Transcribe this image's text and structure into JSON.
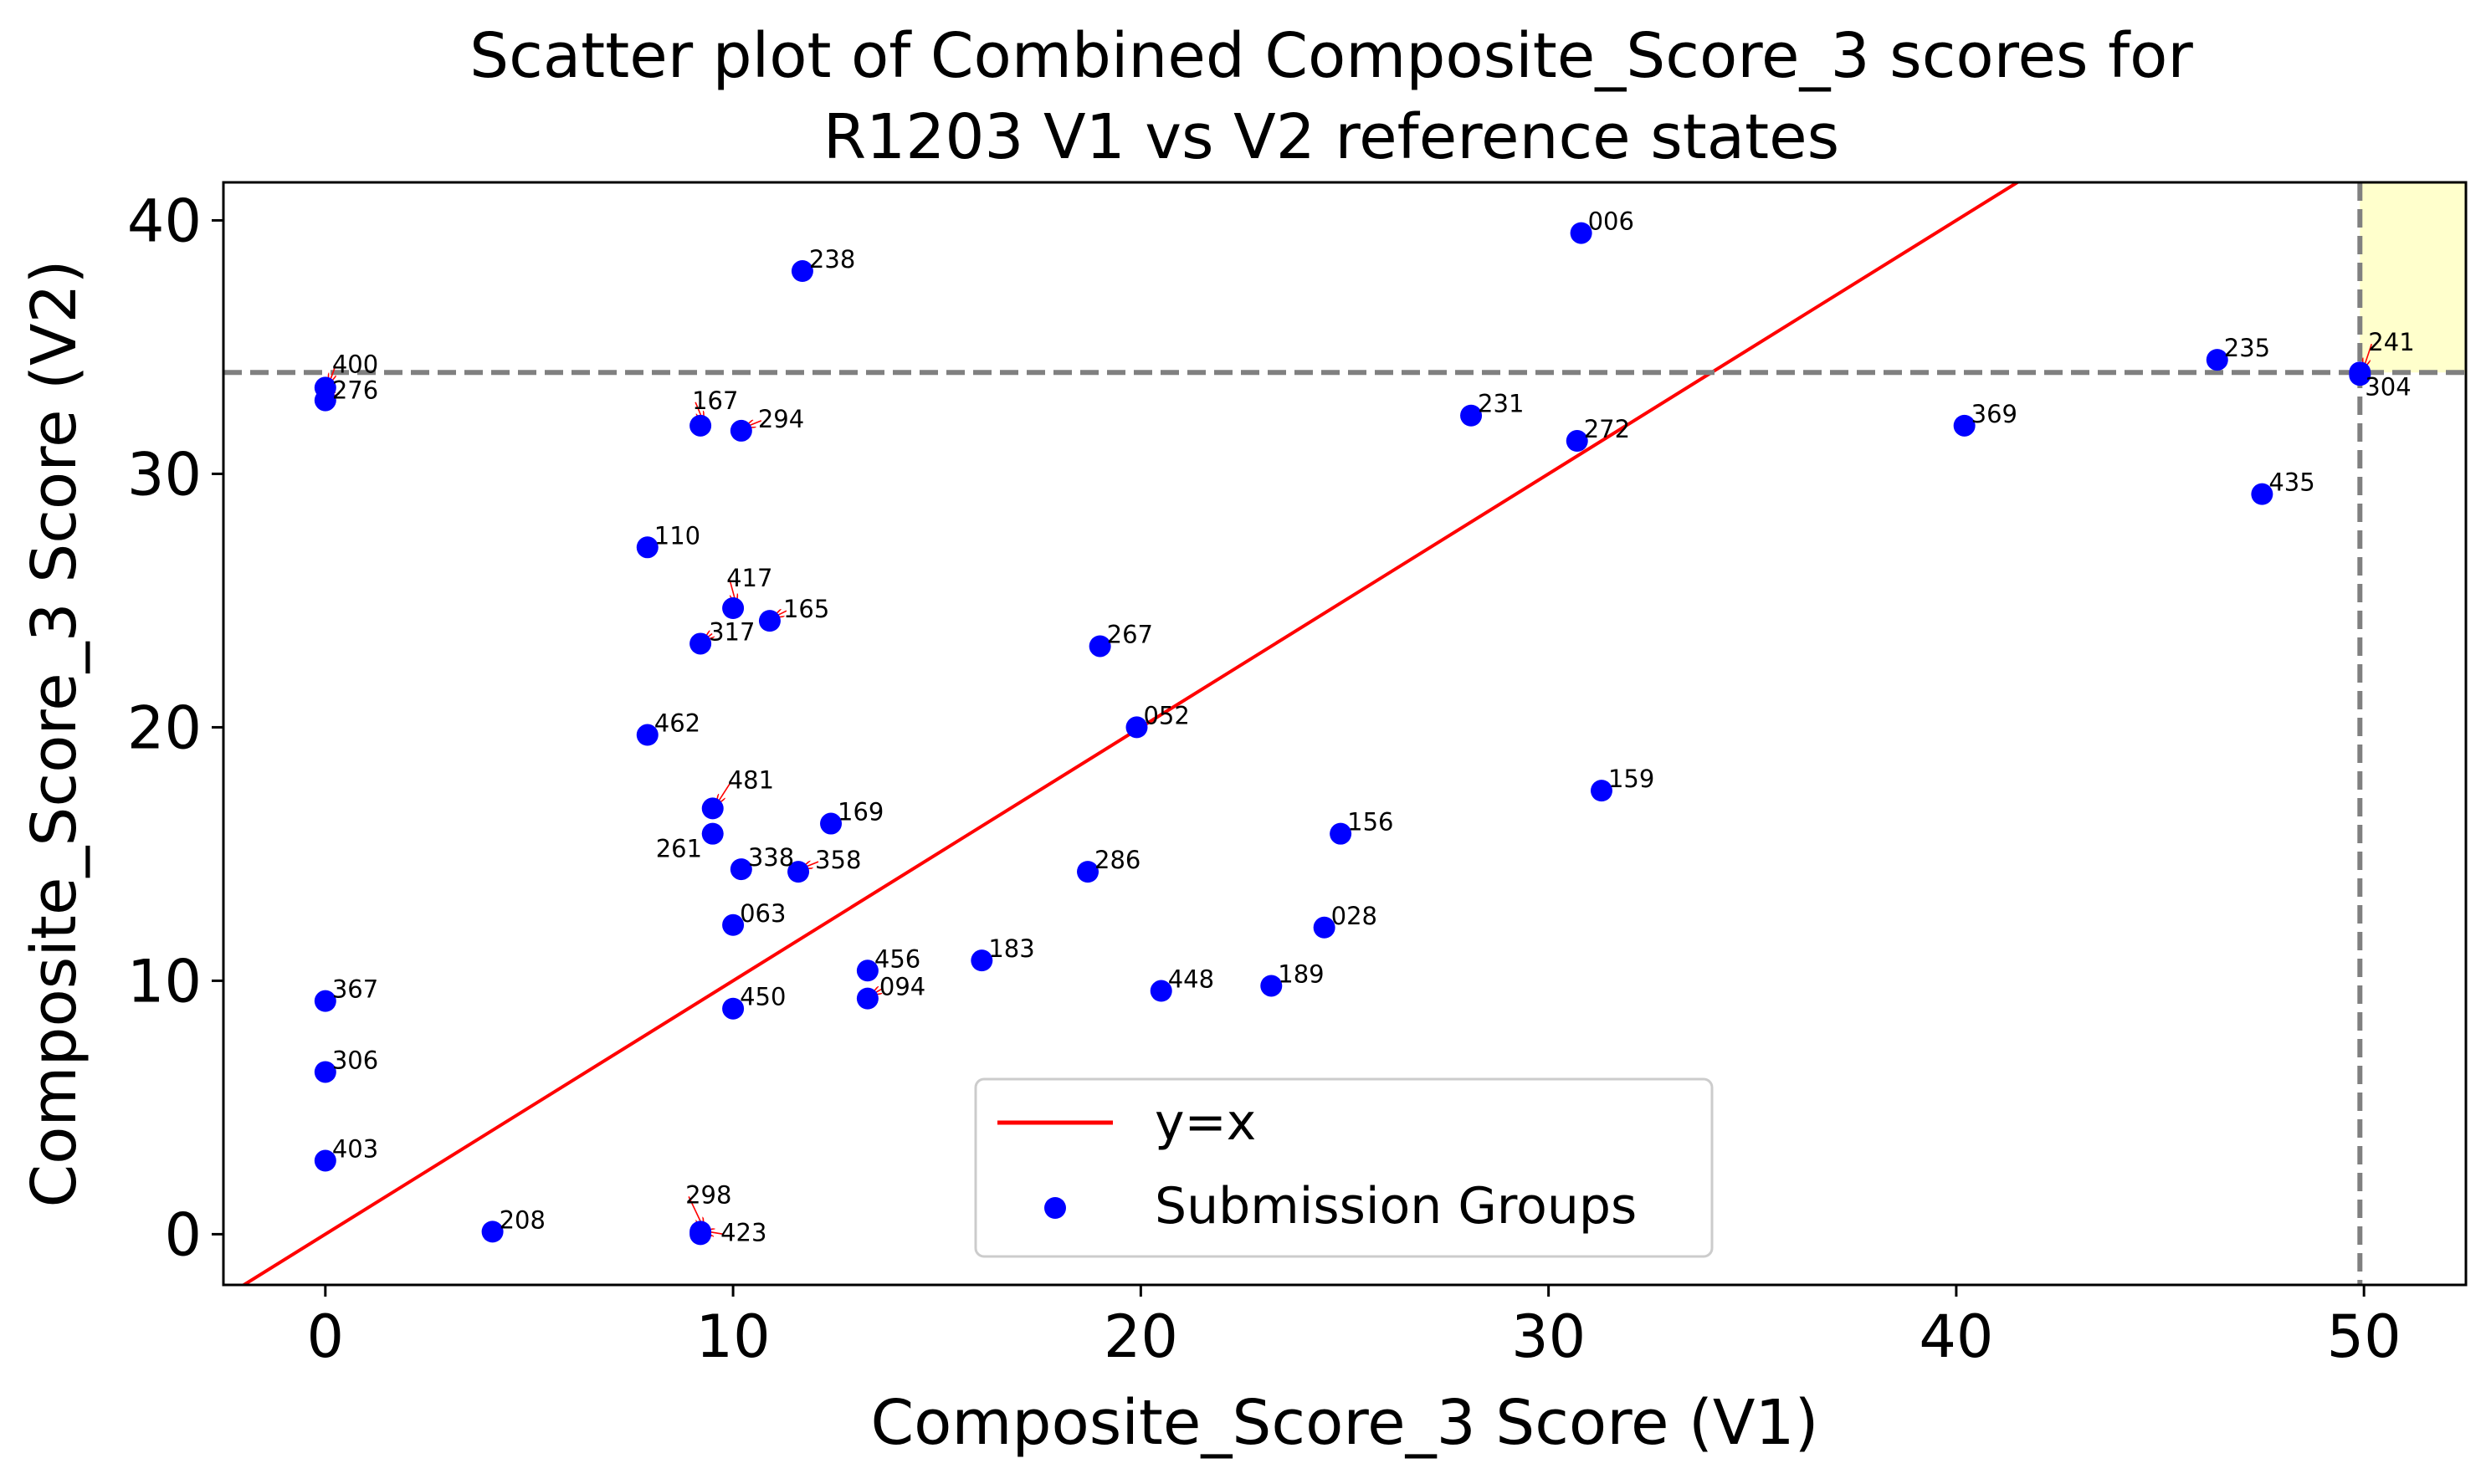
{
  "chart_data": {
    "type": "scatter",
    "title_lines": [
      "Scatter plot of Combined Composite_Score_3 scores for",
      "R1203 V1 vs V2 reference states"
    ],
    "xlabel": "Composite_Score_3 Score (V1)",
    "ylabel": "Composite_Score_3 Score (V2)",
    "xlim": [
      -2.5,
      52.5
    ],
    "ylim": [
      -2,
      41.5
    ],
    "xticks": [
      0,
      10,
      20,
      30,
      40,
      50
    ],
    "yticks": [
      0,
      10,
      20,
      30,
      40
    ],
    "threshold_x": 49.9,
    "threshold_y": 34.0,
    "highlight_color": "#ffffcc",
    "threshold_color": "#808080",
    "diagonal_color": "#ff0000",
    "point_color": "#0000ff",
    "arrow_color": "#ff0000",
    "legend": {
      "position": "lower center",
      "entries": [
        {
          "label": "y=x",
          "marker": "line"
        },
        {
          "label": "Submission Groups",
          "marker": "dot"
        }
      ]
    },
    "points": [
      {
        "label": "006",
        "x": 30.8,
        "y": 39.5
      },
      {
        "label": "238",
        "x": 11.7,
        "y": 38.0
      },
      {
        "label": "400",
        "x": 0.0,
        "y": 33.4
      },
      {
        "label": "276",
        "x": 0.0,
        "y": 32.9
      },
      {
        "label": "167",
        "x": 9.2,
        "y": 31.9
      },
      {
        "label": "294",
        "x": 10.2,
        "y": 31.7
      },
      {
        "label": "231",
        "x": 28.1,
        "y": 32.3
      },
      {
        "label": "272",
        "x": 30.7,
        "y": 31.3
      },
      {
        "label": "235",
        "x": 46.4,
        "y": 34.5
      },
      {
        "label": "241",
        "x": 49.9,
        "y": 34.0
      },
      {
        "label": "304",
        "x": 49.9,
        "y": 33.9
      },
      {
        "label": "369",
        "x": 40.2,
        "y": 31.9
      },
      {
        "label": "435",
        "x": 47.5,
        "y": 29.2
      },
      {
        "label": "110",
        "x": 7.9,
        "y": 27.1
      },
      {
        "label": "417",
        "x": 10.0,
        "y": 24.7
      },
      {
        "label": "165",
        "x": 10.9,
        "y": 24.2
      },
      {
        "label": "317",
        "x": 9.2,
        "y": 23.3
      },
      {
        "label": "267",
        "x": 19.0,
        "y": 23.2
      },
      {
        "label": "462",
        "x": 7.9,
        "y": 19.7
      },
      {
        "label": "052",
        "x": 19.9,
        "y": 20.0
      },
      {
        "label": "159",
        "x": 31.3,
        "y": 17.5
      },
      {
        "label": "481",
        "x": 9.5,
        "y": 16.8
      },
      {
        "label": "261",
        "x": 9.5,
        "y": 15.8
      },
      {
        "label": "169",
        "x": 12.4,
        "y": 16.2
      },
      {
        "label": "156",
        "x": 24.9,
        "y": 15.8
      },
      {
        "label": "338",
        "x": 10.2,
        "y": 14.4
      },
      {
        "label": "358",
        "x": 11.6,
        "y": 14.3
      },
      {
        "label": "286",
        "x": 18.7,
        "y": 14.3
      },
      {
        "label": "063",
        "x": 10.0,
        "y": 12.2
      },
      {
        "label": "028",
        "x": 24.5,
        "y": 12.1
      },
      {
        "label": "183",
        "x": 16.1,
        "y": 10.8
      },
      {
        "label": "456",
        "x": 13.3,
        "y": 10.4
      },
      {
        "label": "094",
        "x": 13.3,
        "y": 9.3
      },
      {
        "label": "450",
        "x": 10.0,
        "y": 8.9
      },
      {
        "label": "448",
        "x": 20.5,
        "y": 9.6
      },
      {
        "label": "189",
        "x": 23.2,
        "y": 9.8
      },
      {
        "label": "367",
        "x": 0.0,
        "y": 9.2
      },
      {
        "label": "306",
        "x": 0.0,
        "y": 6.4
      },
      {
        "label": "403",
        "x": 0.0,
        "y": 2.9
      },
      {
        "label": "208",
        "x": 4.1,
        "y": 0.1
      },
      {
        "label": "298",
        "x": 9.2,
        "y": 0.1
      },
      {
        "label": "423",
        "x": 9.2,
        "y": 0.0
      }
    ]
  }
}
